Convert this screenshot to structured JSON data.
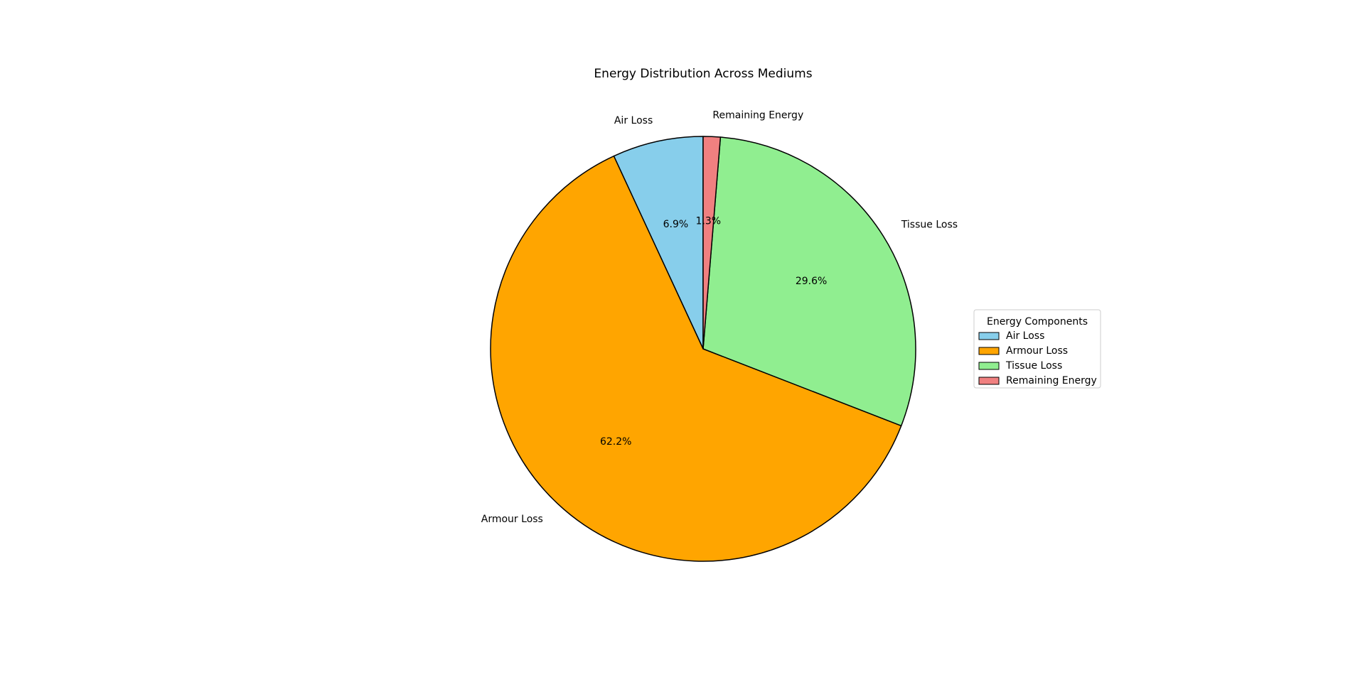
{
  "chart_data": {
    "type": "pie",
    "title": "Energy Distribution Across Mediums",
    "categories": [
      "Air Loss",
      "Armour Loss",
      "Tissue Loss",
      "Remaining Energy"
    ],
    "values": [
      6.9,
      62.2,
      29.6,
      1.3
    ],
    "percent_labels": [
      "6.9%",
      "62.2%",
      "29.6%",
      "1.3%"
    ],
    "colors": [
      "#87ceeb",
      "#ffa500",
      "#90ee90",
      "#f08080"
    ],
    "edge_color": "#000000",
    "start_angle_deg": 90,
    "direction": "counterclockwise",
    "legend": {
      "title": "Energy Components",
      "placement": "center-right",
      "entries": [
        "Air Loss",
        "Armour Loss",
        "Tissue Loss",
        "Remaining Energy"
      ]
    }
  }
}
